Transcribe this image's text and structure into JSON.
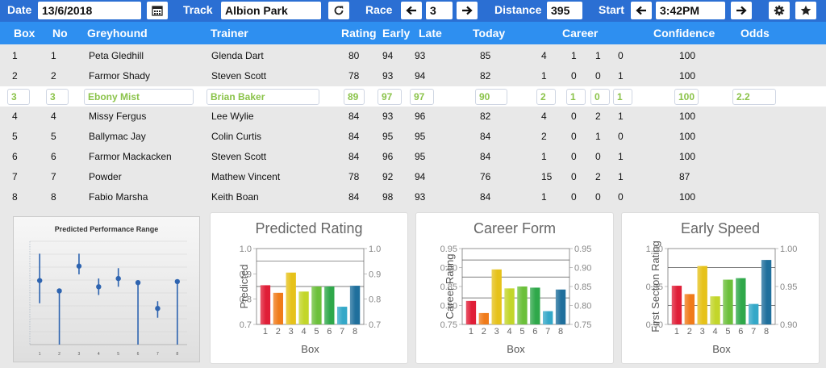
{
  "toolbar": {
    "date_label": "Date",
    "date_value": "13/6/2018",
    "track_label": "Track",
    "track_value": "Albion Park",
    "race_label": "Race",
    "race_value": "3",
    "distance_label": "Distance",
    "distance_value": "395",
    "start_label": "Start",
    "start_value": "3:42PM",
    "icons": {
      "calendar": "calendar-icon",
      "refresh": "refresh-icon",
      "prev": "arrow-left-icon",
      "next": "arrow-right-icon",
      "settings": "gear-icon",
      "favorite": "star-icon"
    }
  },
  "columns": {
    "box": "Box",
    "no": "No",
    "greyhound": "Greyhound",
    "trainer": "Trainer",
    "rating": "Rating",
    "early": "Early",
    "late": "Late",
    "today": "Today",
    "career": "Career",
    "confidence": "Confidence",
    "odds": "Odds"
  },
  "runners": [
    {
      "box": "1",
      "no": "1",
      "name": "Peta Gledhill",
      "trainer": "Glenda Dart",
      "rating": "80",
      "early": "94",
      "late": "93",
      "today": "85",
      "c1": "4",
      "c2": "1",
      "c3": "1",
      "c4": "0",
      "confidence": "100",
      "odds": ""
    },
    {
      "box": "2",
      "no": "2",
      "name": "Farmor Shady",
      "trainer": "Steven Scott",
      "rating": "78",
      "early": "93",
      "late": "94",
      "today": "82",
      "c1": "1",
      "c2": "0",
      "c3": "0",
      "c4": "1",
      "confidence": "100",
      "odds": ""
    },
    {
      "box": "3",
      "no": "3",
      "name": "Ebony Mist",
      "trainer": "Brian Baker",
      "rating": "89",
      "early": "97",
      "late": "97",
      "today": "90",
      "c1": "2",
      "c2": "1",
      "c3": "0",
      "c4": "1",
      "confidence": "100",
      "odds": "2.2"
    },
    {
      "box": "4",
      "no": "4",
      "name": "Missy Fergus",
      "trainer": "Lee Wylie",
      "rating": "84",
      "early": "93",
      "late": "96",
      "today": "82",
      "c1": "4",
      "c2": "0",
      "c3": "2",
      "c4": "1",
      "confidence": "100",
      "odds": ""
    },
    {
      "box": "5",
      "no": "5",
      "name": "Ballymac Jay",
      "trainer": "Colin Curtis",
      "rating": "84",
      "early": "95",
      "late": "95",
      "today": "84",
      "c1": "2",
      "c2": "0",
      "c3": "1",
      "c4": "0",
      "confidence": "100",
      "odds": ""
    },
    {
      "box": "6",
      "no": "6",
      "name": "Farmor Mackacken",
      "trainer": "Steven Scott",
      "rating": "84",
      "early": "96",
      "late": "95",
      "today": "84",
      "c1": "1",
      "c2": "0",
      "c3": "0",
      "c4": "1",
      "confidence": "100",
      "odds": ""
    },
    {
      "box": "7",
      "no": "7",
      "name": "Powder",
      "trainer": "Mathew Vincent",
      "rating": "78",
      "early": "92",
      "late": "94",
      "today": "76",
      "c1": "15",
      "c2": "0",
      "c3": "2",
      "c4": "1",
      "confidence": "87",
      "odds": ""
    },
    {
      "box": "8",
      "no": "8",
      "name": "Fabio Marsha",
      "trainer": "Keith Boan",
      "rating": "84",
      "early": "98",
      "late": "93",
      "today": "84",
      "c1": "1",
      "c2": "0",
      "c3": "0",
      "c4": "0",
      "confidence": "100",
      "odds": ""
    }
  ],
  "selected_row": 2,
  "colors": {
    "topbar": "#2b6fd3",
    "header": "#2e8ff0",
    "selected_text": "#8bc34a",
    "bars": [
      "#e01e37",
      "#f07b1a",
      "#e6c21a",
      "#c3d62a",
      "#6cc03b",
      "#2fa84a",
      "#34a8c8",
      "#1f6f9c"
    ]
  },
  "chart_data": [
    {
      "type": "scatter",
      "title": "Predicted Performance Range",
      "categories": [
        "1",
        "2",
        "3",
        "4",
        "5",
        "6",
        "7",
        "8"
      ],
      "y": [
        0.62,
        0.52,
        0.76,
        0.56,
        0.64,
        0.6,
        0.35,
        0.61
      ],
      "low": [
        0.4,
        0.0,
        0.68,
        0.48,
        0.56,
        0.0,
        0.26,
        0.0
      ],
      "high": [
        0.88,
        0.52,
        0.88,
        0.64,
        0.74,
        0.6,
        0.42,
        0.61
      ],
      "grid": true,
      "xlabel": "",
      "ylabel": ""
    },
    {
      "type": "bar",
      "title": "Predicted Rating",
      "categories": [
        "1",
        "2",
        "3",
        "4",
        "5",
        "6",
        "7",
        "8"
      ],
      "values": [
        0.855,
        0.825,
        0.905,
        0.83,
        0.85,
        0.85,
        0.77,
        0.853
      ],
      "ylim": [
        0.7,
        1.0
      ],
      "yticks": [
        "0.7",
        "0.8",
        "0.9",
        "1.0"
      ],
      "xlabel": "Box",
      "ylabel": "Predicted",
      "reference_lines": [
        0.95,
        0.85
      ],
      "grid": false
    },
    {
      "type": "bar",
      "title": "Career Form",
      "categories": [
        "1",
        "2",
        "3",
        "4",
        "5",
        "6",
        "7",
        "8"
      ],
      "values": [
        0.812,
        0.78,
        0.895,
        0.845,
        0.85,
        0.847,
        0.785,
        0.842
      ],
      "ylim": [
        0.75,
        0.95
      ],
      "yticks": [
        "0.75",
        "0.80",
        "0.85",
        "0.90",
        "0.95"
      ],
      "xlabel": "Box",
      "ylabel": "Career Rating",
      "reference_lines": [
        0.92,
        0.875,
        0.82
      ],
      "grid": false
    },
    {
      "type": "bar",
      "title": "Early Speed",
      "categories": [
        "1",
        "2",
        "3",
        "4",
        "5",
        "6",
        "7",
        "8"
      ],
      "values": [
        0.951,
        0.94,
        0.977,
        0.937,
        0.959,
        0.961,
        0.927,
        0.985
      ],
      "ylim": [
        0.9,
        1.0
      ],
      "yticks": [
        "0.90",
        "0.95",
        "1.00"
      ],
      "xlabel": "Box",
      "ylabel": "First Section Rating",
      "reference_lines": [
        0.975,
        0.925
      ],
      "grid": false
    }
  ]
}
